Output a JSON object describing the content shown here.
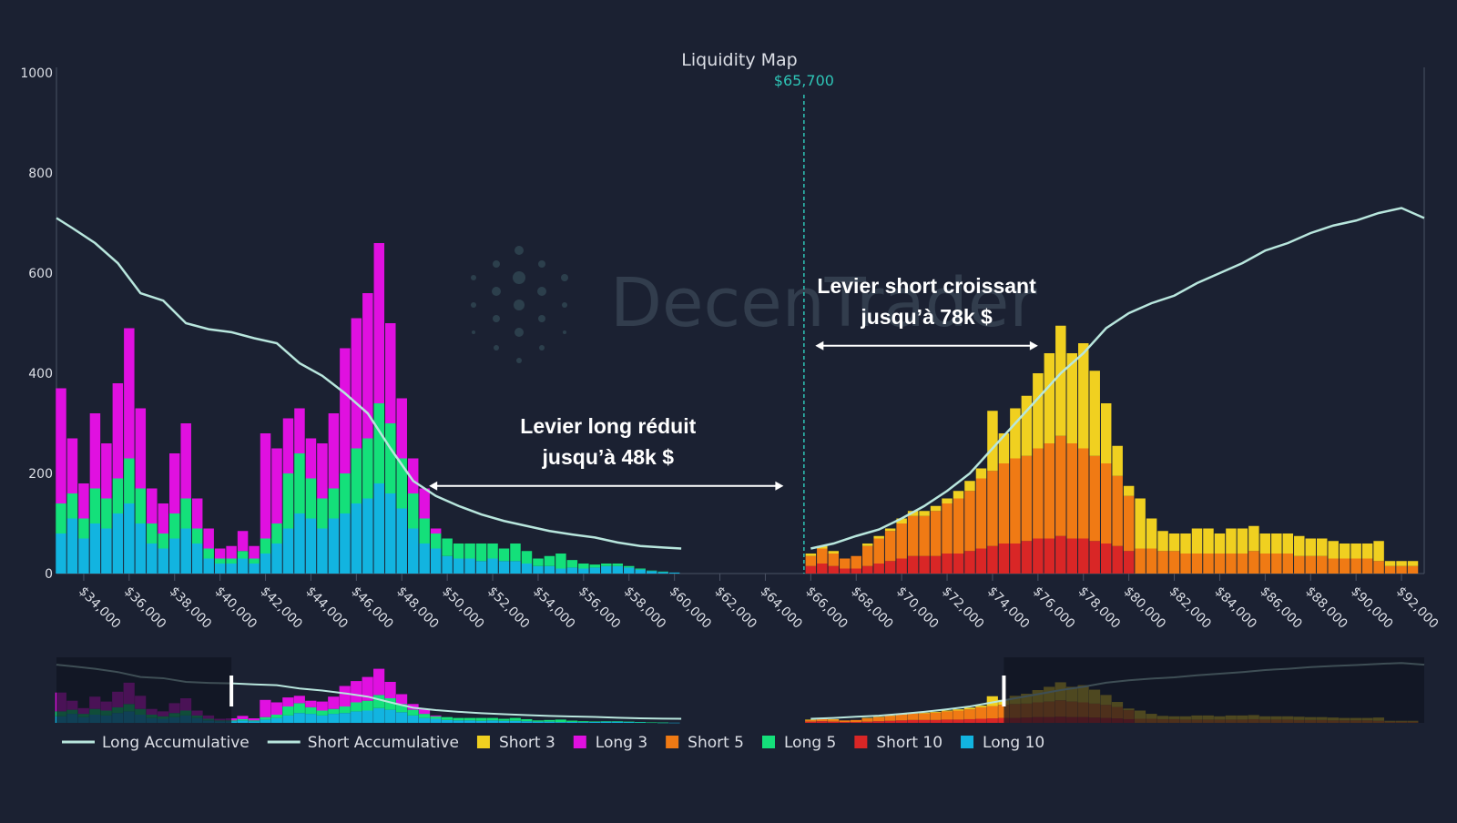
{
  "chart_data": {
    "type": "bar",
    "title": "Liquidity Map",
    "current_price_label": "$65,700",
    "current_price": 65700,
    "ylim": [
      0,
      1000
    ],
    "y_ticks": [
      0,
      200,
      400,
      600,
      800,
      1000
    ],
    "xlim": [
      32800,
      93000
    ],
    "x_ticks": [
      {
        "value": 34000,
        "label": "$34,000"
      },
      {
        "value": 36000,
        "label": "$36,000"
      },
      {
        "value": 38000,
        "label": "$38,000"
      },
      {
        "value": 40000,
        "label": "$40,000"
      },
      {
        "value": 42000,
        "label": "$42,000"
      },
      {
        "value": 44000,
        "label": "$44,000"
      },
      {
        "value": 46000,
        "label": "$46,000"
      },
      {
        "value": 48000,
        "label": "$48,000"
      },
      {
        "value": 50000,
        "label": "$50,000"
      },
      {
        "value": 52000,
        "label": "$52,000"
      },
      {
        "value": 54000,
        "label": "$54,000"
      },
      {
        "value": 56000,
        "label": "$56,000"
      },
      {
        "value": 58000,
        "label": "$58,000"
      },
      {
        "value": 60000,
        "label": "$60,000"
      },
      {
        "value": 62000,
        "label": "$62,000"
      },
      {
        "value": 64000,
        "label": "$64,000"
      },
      {
        "value": 66000,
        "label": "$66,000"
      },
      {
        "value": 68000,
        "label": "$68,000"
      },
      {
        "value": 70000,
        "label": "$70,000"
      },
      {
        "value": 72000,
        "label": "$72,000"
      },
      {
        "value": 74000,
        "label": "$74,000"
      },
      {
        "value": 76000,
        "label": "$76,000"
      },
      {
        "value": 78000,
        "label": "$78,000"
      },
      {
        "value": 80000,
        "label": "$80,000"
      },
      {
        "value": 82000,
        "label": "$82,000"
      },
      {
        "value": 84000,
        "label": "$84,000"
      },
      {
        "value": 86000,
        "label": "$86,000"
      },
      {
        "value": 88000,
        "label": "$88,000"
      },
      {
        "value": 90000,
        "label": "$90,000"
      },
      {
        "value": 92000,
        "label": "$92,000"
      }
    ],
    "bin_width": 500,
    "bins": {
      "long": [
        33000,
        33500,
        34000,
        34500,
        35000,
        35500,
        36000,
        36500,
        37000,
        37500,
        38000,
        38500,
        39000,
        39500,
        40000,
        40500,
        41000,
        41500,
        42000,
        42500,
        43000,
        43500,
        44000,
        44500,
        45000,
        45500,
        46000,
        46500,
        47000,
        47500,
        48000,
        48500,
        49000,
        49500,
        50000,
        50500,
        51000,
        51500,
        52000,
        52500,
        53000,
        53500,
        54000,
        54500,
        55000,
        55500,
        56000,
        56500,
        57000,
        57500,
        58000,
        58500,
        59000,
        59500,
        60000
      ],
      "short": [
        66000,
        66500,
        67000,
        67500,
        68000,
        68500,
        69000,
        69500,
        70000,
        70500,
        71000,
        71500,
        72000,
        72500,
        73000,
        73500,
        74000,
        74500,
        75000,
        75500,
        76000,
        76500,
        77000,
        77500,
        78000,
        78500,
        79000,
        79500,
        80000,
        80500,
        81000,
        81500,
        82000,
        82500,
        83000,
        83500,
        84000,
        84500,
        85000,
        85500,
        86000,
        86500,
        87000,
        87500,
        88000,
        88500,
        89000,
        89500,
        90000,
        90500,
        91000,
        91500,
        92000,
        92500
      ]
    },
    "series": [
      {
        "name": "Long 10",
        "color": "#12b4e0",
        "stack": "long",
        "values": [
          80,
          110,
          70,
          100,
          90,
          120,
          140,
          100,
          60,
          50,
          70,
          90,
          60,
          30,
          20,
          20,
          30,
          20,
          40,
          60,
          90,
          120,
          110,
          90,
          110,
          120,
          140,
          150,
          180,
          160,
          130,
          90,
          60,
          50,
          35,
          30,
          30,
          25,
          30,
          25,
          25,
          20,
          15,
          15,
          10,
          12,
          10,
          12,
          15,
          15,
          12,
          8,
          5,
          3,
          2
        ]
      },
      {
        "name": "Long 5",
        "color": "#14e07a",
        "stack": "long",
        "values": [
          60,
          50,
          40,
          70,
          60,
          70,
          90,
          70,
          40,
          30,
          50,
          60,
          30,
          20,
          10,
          10,
          15,
          10,
          30,
          40,
          110,
          120,
          80,
          60,
          60,
          80,
          110,
          120,
          160,
          140,
          100,
          70,
          50,
          30,
          35,
          30,
          30,
          35,
          30,
          25,
          35,
          25,
          15,
          20,
          30,
          15,
          10,
          6,
          5,
          5,
          3,
          2,
          1,
          1,
          0
        ]
      },
      {
        "name": "Long 3",
        "color": "#e010e0",
        "stack": "long",
        "values": [
          230,
          110,
          70,
          150,
          110,
          190,
          260,
          160,
          70,
          60,
          120,
          150,
          60,
          40,
          20,
          25,
          40,
          25,
          210,
          150,
          110,
          90,
          80,
          110,
          150,
          250,
          260,
          290,
          320,
          200,
          120,
          70,
          60,
          10,
          0,
          0,
          0,
          0,
          0,
          0,
          0,
          0,
          0,
          0,
          0,
          0,
          0,
          0,
          0,
          0,
          0,
          0,
          0,
          0,
          0
        ]
      },
      {
        "name": "Short 10",
        "color": "#d92626",
        "stack": "short",
        "values": [
          15,
          20,
          15,
          10,
          10,
          15,
          20,
          25,
          30,
          35,
          35,
          35,
          40,
          40,
          45,
          50,
          55,
          60,
          60,
          65,
          70,
          70,
          75,
          70,
          70,
          65,
          60,
          55,
          45,
          0,
          0,
          0,
          0,
          0,
          0,
          0,
          0,
          0,
          0,
          0,
          0,
          0,
          0,
          0,
          0,
          0,
          0,
          0,
          0,
          0,
          0,
          0,
          0,
          0
        ]
      },
      {
        "name": "Short 5",
        "color": "#f07a14",
        "stack": "short",
        "values": [
          20,
          30,
          25,
          20,
          25,
          40,
          50,
          60,
          70,
          80,
          80,
          90,
          100,
          110,
          120,
          140,
          150,
          160,
          170,
          170,
          180,
          190,
          200,
          190,
          180,
          170,
          160,
          140,
          110,
          50,
          50,
          45,
          45,
          40,
          40,
          40,
          40,
          40,
          40,
          45,
          40,
          40,
          40,
          35,
          35,
          35,
          30,
          30,
          30,
          30,
          25,
          15,
          15,
          15
        ]
      },
      {
        "name": "Short 3",
        "color": "#f0d020",
        "stack": "short",
        "values": [
          5,
          5,
          5,
          0,
          0,
          5,
          5,
          5,
          10,
          10,
          10,
          10,
          10,
          15,
          20,
          20,
          120,
          60,
          100,
          120,
          150,
          180,
          220,
          180,
          210,
          170,
          120,
          60,
          20,
          100,
          60,
          40,
          35,
          40,
          50,
          50,
          40,
          50,
          50,
          50,
          40,
          40,
          40,
          40,
          35,
          35,
          35,
          30,
          30,
          30,
          40,
          10,
          10,
          10
        ]
      }
    ],
    "accumulative": [
      {
        "name": "Long Accumulative",
        "color": "#b8e6dd",
        "x": [
          32800,
          33500,
          34500,
          35500,
          36500,
          37500,
          38500,
          39500,
          40500,
          41500,
          42500,
          43500,
          44500,
          45500,
          46500,
          47500,
          48500,
          49500,
          50500,
          51500,
          52500,
          53500,
          54500,
          55500,
          56500,
          57500,
          58500,
          59500,
          60300
        ],
        "y": [
          710,
          690,
          660,
          620,
          560,
          545,
          500,
          488,
          482,
          470,
          460,
          420,
          395,
          360,
          320,
          250,
          185,
          155,
          135,
          118,
          105,
          95,
          85,
          78,
          72,
          62,
          55,
          52,
          50
        ]
      },
      {
        "name": "Short Accumulative",
        "color": "#b8e6dd",
        "x": [
          66000,
          67000,
          68000,
          69000,
          70000,
          71000,
          72000,
          73000,
          74000,
          75000,
          76000,
          77000,
          78000,
          79000,
          80000,
          81000,
          82000,
          83000,
          84000,
          85000,
          86000,
          87000,
          88000,
          89000,
          90000,
          91000,
          92000,
          93000
        ],
        "y": [
          50,
          60,
          75,
          88,
          110,
          135,
          165,
          200,
          250,
          300,
          350,
          400,
          440,
          490,
          520,
          540,
          555,
          580,
          600,
          620,
          645,
          660,
          680,
          695,
          705,
          720,
          730,
          710
        ]
      }
    ],
    "annotations": [
      {
        "lines": [
          "Levier long réduit",
          "jusqu’à 48k $"
        ],
        "from": 49200,
        "to": 64800,
        "y": 175
      },
      {
        "lines": [
          "Levier short croissant",
          "jusqu’à 78k $"
        ],
        "from": 66200,
        "to": 76000,
        "y": 455
      }
    ],
    "watermark": "DecenTrader",
    "legend": {
      "placement": "bottom-left",
      "entries": [
        {
          "name": "Long Accumulative",
          "type": "line",
          "color": "#b8e6dd"
        },
        {
          "name": "Short Accumulative",
          "type": "line",
          "color": "#b8e6dd"
        },
        {
          "name": "Short 3",
          "type": "box",
          "color": "#f0d020"
        },
        {
          "name": "Long 3",
          "type": "box",
          "color": "#e010e0"
        },
        {
          "name": "Short 5",
          "type": "box",
          "color": "#f07a14"
        },
        {
          "name": "Long 5",
          "type": "box",
          "color": "#14e07a"
        },
        {
          "name": "Short 10",
          "type": "box",
          "color": "#d92626"
        },
        {
          "name": "Long 10",
          "type": "box",
          "color": "#12b4e0"
        }
      ]
    },
    "range_slider": {
      "selected_from": 40500,
      "selected_to": 74500
    }
  },
  "colors": {
    "background": "#1b2132",
    "text": "#dcdfe6",
    "axis": "#4a5264",
    "price_line": "#2ec4b6",
    "annotation": "#ffffff",
    "slider_shade": "#0f1320"
  }
}
